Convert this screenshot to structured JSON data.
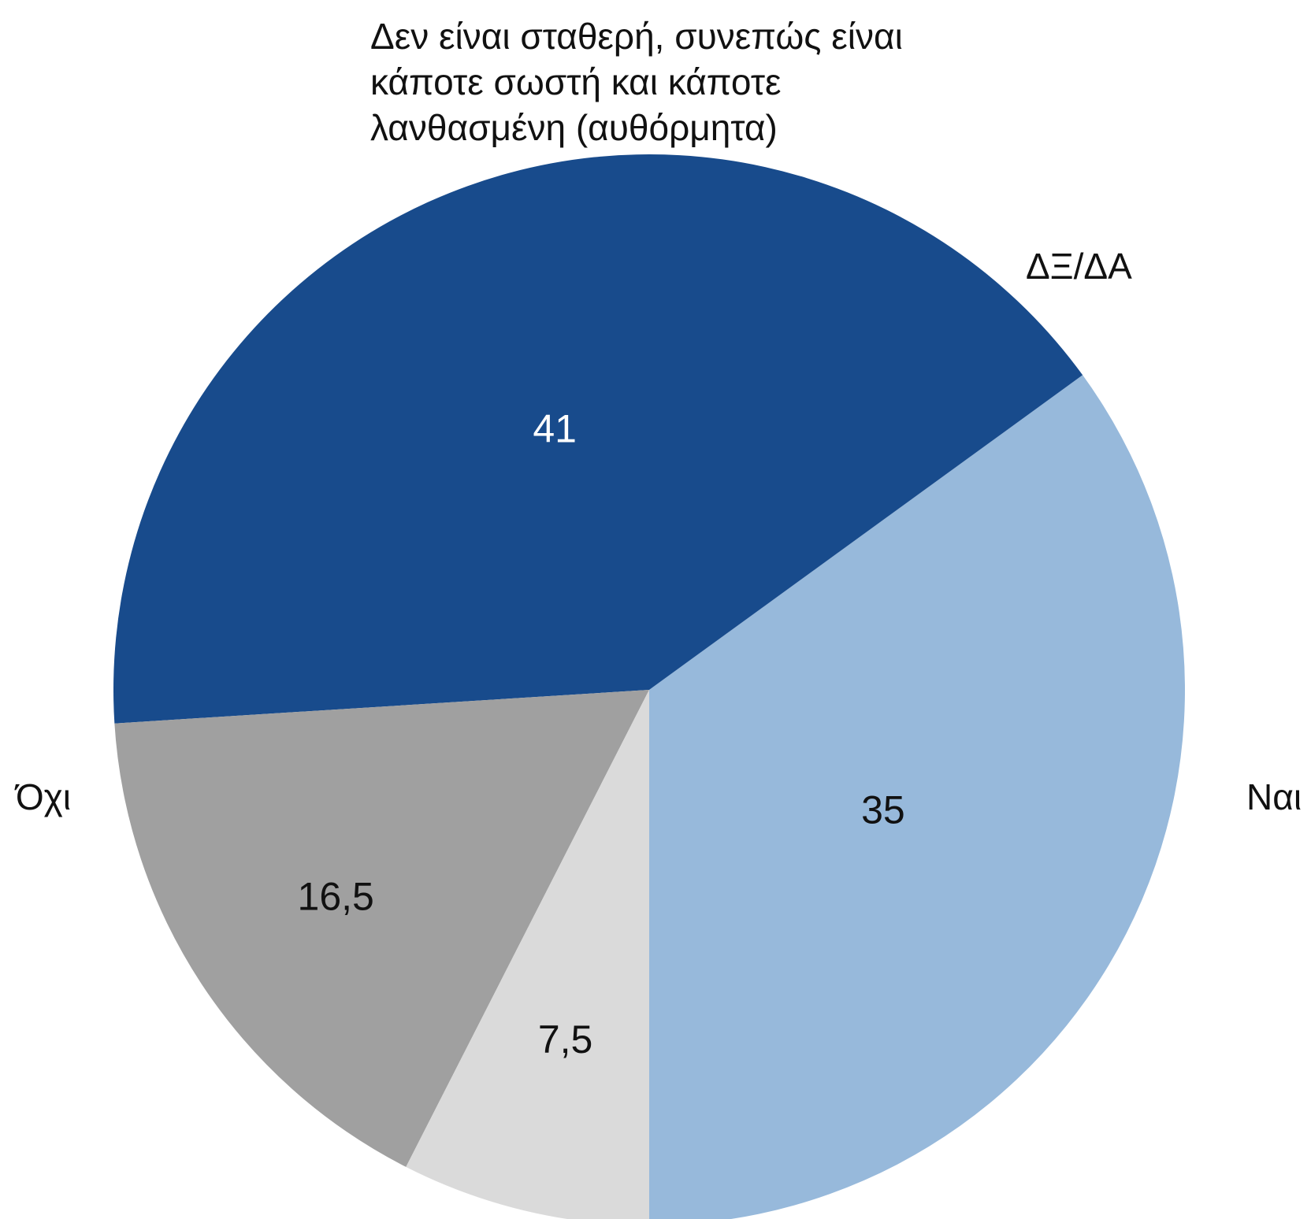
{
  "chart_data": {
    "type": "pie",
    "categories": [
      "Ναι",
      "Όχι",
      "Δεν είναι σταθερή, συνεπώς είναι κάποτε σωστή και κάποτε λανθασμένη (αυθόρμητα)",
      "ΔΞ/ΔΑ"
    ],
    "values": [
      35,
      41,
      16.5,
      7.5
    ],
    "value_labels": [
      "35",
      "41",
      "16,5",
      "7,5"
    ],
    "colors": [
      "#97b9db",
      "#184b8c",
      "#a0a0a0",
      "#dadada"
    ],
    "value_label_colors": [
      "#111111",
      "#ffffff",
      "#111111",
      "#111111"
    ],
    "title": "",
    "legend": "none",
    "start": "bottom",
    "direction": "counterclockwise"
  }
}
